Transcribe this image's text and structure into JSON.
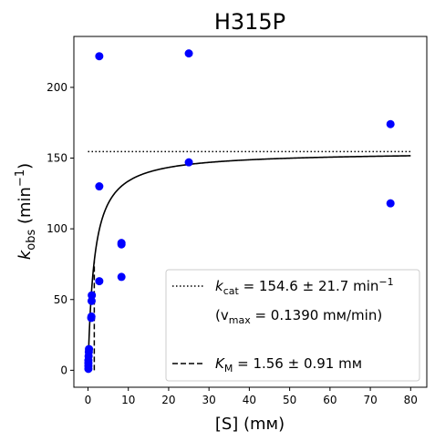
{
  "chart_data": {
    "type": "scatter",
    "title": "H315P",
    "xlabel": {
      "main": "[S] (mм)"
    },
    "ylabel": {
      "main": "k",
      "sub": "obs",
      "unit_pre": " (min",
      "unit_sup": "−1",
      "unit_post": ")"
    },
    "xlim": [
      -3.5,
      84
    ],
    "ylim": [
      -12,
      236
    ],
    "xticks": [
      0,
      10,
      20,
      30,
      40,
      50,
      60,
      70,
      80
    ],
    "yticks": [
      0,
      50,
      100,
      150,
      200
    ],
    "grid": false,
    "legend_position": "lower-right",
    "colors": {
      "points": "#0000ff",
      "lines": "#000000"
    },
    "points": [
      {
        "x": 0.1,
        "y": 1
      },
      {
        "x": 0.1,
        "y": 3
      },
      {
        "x": 0.1,
        "y": 5
      },
      {
        "x": 0.1,
        "y": 7
      },
      {
        "x": 0.15,
        "y": 10
      },
      {
        "x": 0.2,
        "y": 13
      },
      {
        "x": 0.25,
        "y": 15
      },
      {
        "x": 0.8,
        "y": 37
      },
      {
        "x": 0.85,
        "y": 38
      },
      {
        "x": 0.9,
        "y": 49
      },
      {
        "x": 0.95,
        "y": 53
      },
      {
        "x": 2.8,
        "y": 222
      },
      {
        "x": 2.8,
        "y": 130
      },
      {
        "x": 2.8,
        "y": 63
      },
      {
        "x": 8.3,
        "y": 90
      },
      {
        "x": 8.3,
        "y": 89
      },
      {
        "x": 8.3,
        "y": 66
      },
      {
        "x": 25,
        "y": 224
      },
      {
        "x": 25,
        "y": 147
      },
      {
        "x": 75,
        "y": 174
      },
      {
        "x": 75,
        "y": 118
      }
    ],
    "fit": {
      "kcat": 154.6,
      "KM": 1.56,
      "x_range": [
        0,
        80
      ]
    },
    "kcat_line": {
      "y": 154.6,
      "x_range": [
        0,
        80
      ]
    },
    "km_line": {
      "x": 1.56,
      "y_range": [
        0,
        77.3
      ]
    },
    "legend": [
      {
        "style": "dotted",
        "prefix": "k",
        "sub": "cat",
        "text": " = 154.6 ± 21.7 min",
        "sup": "−1"
      },
      {
        "style": "none",
        "pre": "(v",
        "sub": "max",
        "text": " = 0.1390 mм/min)"
      },
      {
        "style": "dashed",
        "prefix": "K",
        "sub": "M",
        "text": " = 1.56 ± 0.91 mм"
      }
    ]
  }
}
